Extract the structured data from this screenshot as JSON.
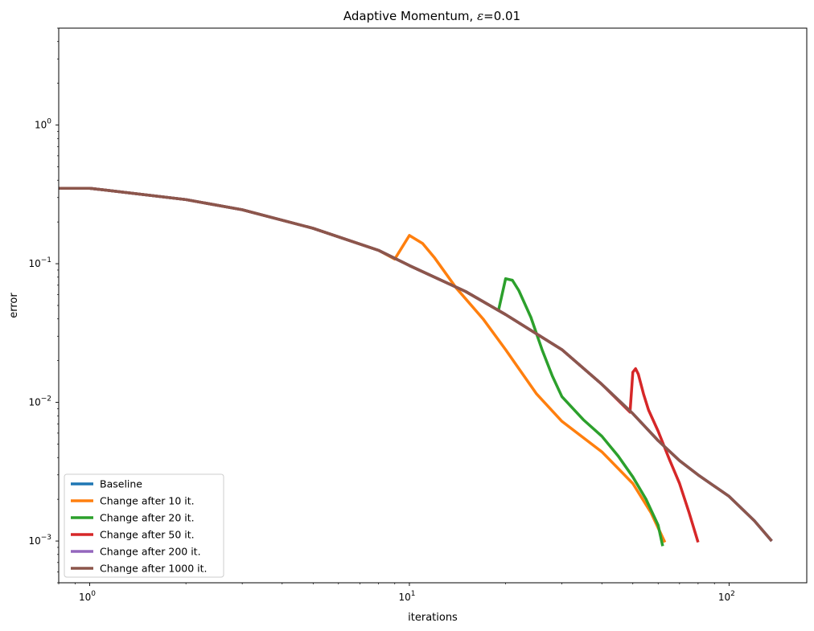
{
  "chart_data": {
    "type": "line",
    "title_prefix": "Adaptive Momentum, ",
    "title_symbol": "ε",
    "title_suffix": "=0.01",
    "xlabel": "iterations",
    "ylabel": "error",
    "xscale": "log",
    "yscale": "log",
    "xlim": [
      0.8,
      175
    ],
    "ylim": [
      0.0005,
      5
    ],
    "grid": false,
    "legend_position": "lower-left",
    "x_ticks": [
      {
        "value": 1,
        "base": "10",
        "exp": "0"
      },
      {
        "value": 10,
        "base": "10",
        "exp": "1"
      },
      {
        "value": 100,
        "base": "10",
        "exp": "2"
      }
    ],
    "y_ticks": [
      {
        "value": 0.001,
        "base": "10",
        "exp": "−3"
      },
      {
        "value": 0.01,
        "base": "10",
        "exp": "−2"
      },
      {
        "value": 0.1,
        "base": "10",
        "exp": "−1"
      },
      {
        "value": 1,
        "base": "10",
        "exp": "0"
      }
    ],
    "series": [
      {
        "name": "Baseline",
        "color": "#1f77b4",
        "x": [
          1,
          2,
          3,
          5,
          8,
          10,
          15,
          20,
          30,
          40,
          50,
          60,
          70,
          80,
          100,
          120,
          136
        ],
        "y": [
          0.35,
          0.29,
          0.245,
          0.18,
          0.125,
          0.097,
          0.063,
          0.043,
          0.024,
          0.0135,
          0.0083,
          0.0053,
          0.0038,
          0.003,
          0.0021,
          0.0014,
          0.001
        ]
      },
      {
        "name": "Change after 10 it.",
        "color": "#ff7f0e",
        "x": [
          1,
          2,
          3,
          5,
          8,
          9,
          10,
          11,
          12,
          14,
          17,
          20,
          25,
          30,
          40,
          50,
          57,
          63
        ],
        "y": [
          0.35,
          0.29,
          0.245,
          0.18,
          0.125,
          0.108,
          0.16,
          0.14,
          0.11,
          0.067,
          0.04,
          0.024,
          0.0115,
          0.0073,
          0.0044,
          0.0026,
          0.0016,
          0.00098
        ]
      },
      {
        "name": "Change after 20 it.",
        "color": "#2ca02c",
        "x": [
          1,
          2,
          3,
          5,
          8,
          10,
          15,
          19,
          20,
          21,
          22,
          24,
          26,
          28,
          30,
          35,
          40,
          45,
          50,
          55,
          60,
          62
        ],
        "y": [
          0.35,
          0.29,
          0.245,
          0.18,
          0.125,
          0.097,
          0.063,
          0.046,
          0.078,
          0.076,
          0.064,
          0.041,
          0.024,
          0.0155,
          0.011,
          0.0075,
          0.0057,
          0.0041,
          0.0029,
          0.002,
          0.0013,
          0.00092
        ]
      },
      {
        "name": "Change after 50 it.",
        "color": "#d62728",
        "x": [
          1,
          2,
          3,
          5,
          8,
          10,
          15,
          20,
          30,
          40,
          49,
          50,
          51,
          52,
          54,
          56,
          60,
          65,
          70,
          75,
          80
        ],
        "y": [
          0.35,
          0.29,
          0.245,
          0.18,
          0.125,
          0.097,
          0.063,
          0.043,
          0.024,
          0.0135,
          0.0085,
          0.0165,
          0.0175,
          0.016,
          0.0115,
          0.0088,
          0.0062,
          0.0039,
          0.0026,
          0.0016,
          0.00098
        ]
      },
      {
        "name": "Change after 200 it.",
        "color": "#9467bd",
        "x": [
          1,
          2,
          3,
          5,
          8,
          10,
          15,
          20,
          30,
          40,
          50,
          60,
          70,
          80,
          100,
          120,
          136
        ],
        "y": [
          0.35,
          0.29,
          0.245,
          0.18,
          0.125,
          0.097,
          0.063,
          0.043,
          0.024,
          0.0135,
          0.0083,
          0.0053,
          0.0038,
          0.003,
          0.0021,
          0.0014,
          0.001
        ]
      },
      {
        "name": "Change after 1000 it.",
        "color": "#8c564b",
        "x": [
          0.8,
          1,
          2,
          3,
          5,
          8,
          10,
          15,
          20,
          30,
          40,
          50,
          60,
          70,
          80,
          100,
          120,
          136
        ],
        "y": [
          0.35,
          0.35,
          0.29,
          0.245,
          0.18,
          0.125,
          0.097,
          0.063,
          0.043,
          0.024,
          0.0135,
          0.0083,
          0.0053,
          0.0038,
          0.003,
          0.0021,
          0.0014,
          0.001
        ]
      }
    ]
  }
}
